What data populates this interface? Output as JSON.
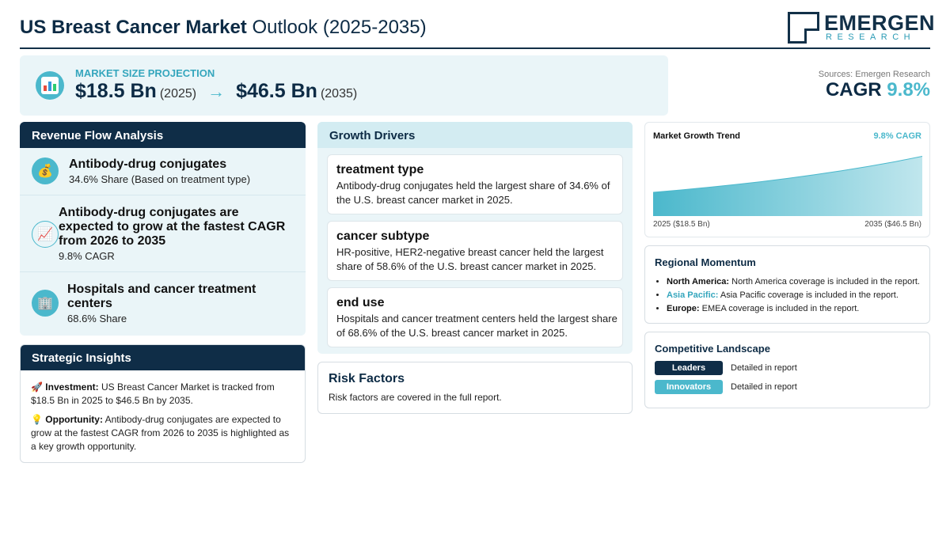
{
  "header": {
    "title_bold": "US Breast Cancer Market",
    "title_rest": "Outlook (2025-2035)",
    "logo_main": "EMERGEN",
    "logo_sub": "RESEARCH"
  },
  "projection": {
    "label": "MARKET SIZE PROJECTION",
    "start_value": "$18.5 Bn",
    "start_year": "(2025)",
    "arrow": "→",
    "end_value": "$46.5 Bn",
    "end_year": "(2035)",
    "icon": "bar-chart-icon"
  },
  "sources": "Sources: Emergen Research",
  "cagr": {
    "label": "CAGR",
    "value": "9.8%"
  },
  "revenue_flow": {
    "title": "Revenue Flow Analysis",
    "items": [
      {
        "icon": "money-bag-icon",
        "title": "Antibody-drug conjugates",
        "sub": "34.6% Share (Based on treatment type)"
      },
      {
        "icon": "chart-up-icon",
        "title": "Antibody-drug conjugates are expected to grow at the fastest CAGR from 2026 to 2035",
        "sub": "9.8% CAGR"
      },
      {
        "icon": "hospital-icon",
        "title": "Hospitals and cancer treatment centers",
        "sub": "68.6% Share"
      }
    ]
  },
  "strategic": {
    "title": "Strategic Insights",
    "investment_label": "Investment:",
    "investment_text": "US Breast Cancer Market is tracked from $18.5 Bn in 2025 to $46.5 Bn by 2035.",
    "opportunity_label": "Opportunity:",
    "opportunity_text": "Antibody-drug conjugates are expected to grow at the fastest CAGR from 2026 to 2035 is highlighted as a key growth opportunity."
  },
  "drivers": {
    "title": "Growth Drivers",
    "cards": [
      {
        "title": "treatment type",
        "text": "Antibody-drug conjugates held the largest share of 34.6% of the U.S. breast cancer market in 2025."
      },
      {
        "title": "cancer subtype",
        "text": "HR-positive, HER2-negative breast cancer held the largest share of 58.6% of the U.S. breast cancer market in 2025."
      },
      {
        "title": "end use",
        "text": "Hospitals and cancer treatment centers held the largest share of 68.6% of the U.S. breast cancer market in 2025."
      }
    ]
  },
  "risk": {
    "title": "Risk Factors",
    "text": "Risk factors are covered in the full report."
  },
  "trend": {
    "title": "Market Growth Trend",
    "cagr_label": "9.8% CAGR",
    "start_label": "2025 ($18.5 Bn)",
    "end_label": "2035 ($46.5 Bn)"
  },
  "chart_data": {
    "type": "area",
    "x": [
      2025,
      2035
    ],
    "values": [
      18.5,
      46.5
    ],
    "title": "Market Growth Trend",
    "xlabel": "",
    "ylabel": "",
    "color": "#4bb8cc"
  },
  "regional": {
    "title": "Regional Momentum",
    "items": [
      {
        "name": "North America:",
        "text": "North America coverage is included in the report."
      },
      {
        "name": "Asia Pacific:",
        "text": "Asia Pacific coverage is included in the report."
      },
      {
        "name": "Europe:",
        "text": "EMEA coverage is included in the report."
      }
    ]
  },
  "competitive": {
    "title": "Competitive Landscape",
    "rows": [
      {
        "badge": "Leaders",
        "color": "#0f2d47",
        "text": "Detailed in report"
      },
      {
        "badge": "Innovators",
        "color": "#4bb8cc",
        "text": "Detailed in report"
      }
    ]
  },
  "colors": {
    "navy": "#0f2d47",
    "teal": "#4bb8cc",
    "panel_bg": "#eaf5f8"
  }
}
